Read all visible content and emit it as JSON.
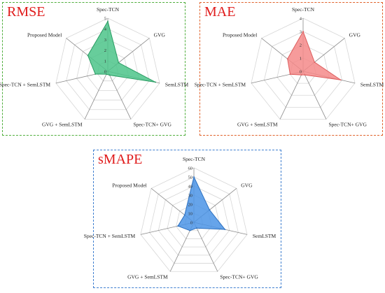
{
  "chart_data": [
    {
      "type": "radar",
      "title": "RMSE",
      "axes": [
        "Spec-TCN",
        "GVG",
        "SemLSTM",
        "Spec-TCN+ GVG",
        "GVG + SemLSTM",
        "Spec-TCN + SemLSTM",
        "Proposed Model"
      ],
      "ticks": [
        0,
        1,
        2,
        3,
        4,
        5
      ],
      "rmax": 5,
      "values": [
        4.7,
        1.3,
        4.6,
        0.4,
        0.3,
        1.2,
        2.4
      ],
      "fill": "#4cc48a",
      "stroke": "#2a9c63",
      "grid": true
    },
    {
      "type": "radar",
      "title": "MAE",
      "axes": [
        "Spec-TCN",
        "GVG",
        "SemLSTM",
        "Spec-TCN+ GVG",
        "GVG + SemLSTM",
        "Spec-TCN + SemLSTM",
        "Proposed Model"
      ],
      "ticks": [
        0,
        1,
        2,
        3,
        4
      ],
      "rmax": 4,
      "values": [
        3.0,
        1.1,
        2.9,
        0.3,
        0.3,
        1.0,
        1.5
      ],
      "fill": "#f48a8a",
      "stroke": "#dd5d5d",
      "grid": true
    },
    {
      "type": "radar",
      "title": "sMAPE",
      "axes": [
        "Spec-TCN",
        "GVG",
        "SemLSTM",
        "Spec-TCN+ GVG",
        "GVG + SemLSTM",
        "Spec-TCN + SemLSTM",
        "Proposed Model"
      ],
      "ticks": [
        0,
        10,
        20,
        30,
        40,
        50,
        60
      ],
      "rmax": 60,
      "values": [
        50,
        22,
        35,
        7,
        10,
        18,
        13
      ],
      "fill": "#4b94e6",
      "stroke": "#2b6fbf",
      "grid": true
    }
  ]
}
